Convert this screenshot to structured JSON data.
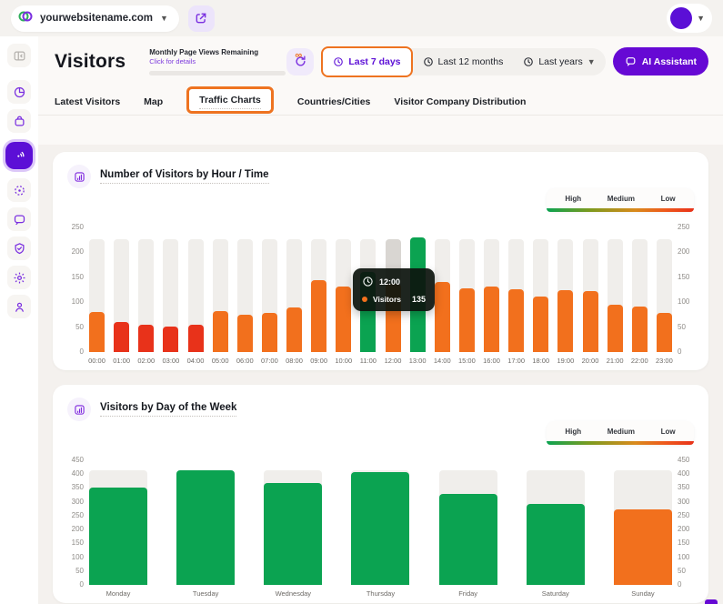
{
  "topbar": {
    "site_selector": {
      "label": "yourwebsitename.com"
    },
    "avatar_color": "#5b0fd6"
  },
  "sidebar": {
    "items": [
      {
        "name": "collapse-sidebar",
        "active": false
      },
      {
        "name": "analytics-pie",
        "active": false
      },
      {
        "name": "orders-bag",
        "active": false
      },
      {
        "name": "traffic-radar",
        "active": true
      },
      {
        "name": "target-scan",
        "active": false
      },
      {
        "name": "chat",
        "active": false
      },
      {
        "name": "security-shield",
        "active": false
      },
      {
        "name": "settings-gear",
        "active": false
      },
      {
        "name": "account-user",
        "active": false
      }
    ]
  },
  "header": {
    "title": "Visitors",
    "page_views": {
      "label": "Monthly Page Views Remaining",
      "link": "Click for details",
      "infinity": "∞"
    },
    "time_ranges": [
      {
        "label": "Last 7 days",
        "active": true,
        "highlighted": true
      },
      {
        "label": "Last 12 months",
        "active": false
      },
      {
        "label": "Last years",
        "active": false,
        "has_chevron": true
      }
    ],
    "ai_assistant": {
      "label": "AI Assistant"
    }
  },
  "tabs": [
    {
      "label": "Latest Visitors"
    },
    {
      "label": "Map"
    },
    {
      "label": "Traffic Charts",
      "active": true,
      "highlighted": true
    },
    {
      "label": "Countries/Cities"
    },
    {
      "label": "Visitor Company Distribution"
    }
  ],
  "legend": {
    "labels": [
      "High",
      "Medium",
      "Low"
    ]
  },
  "colors": {
    "high": "#0ba351",
    "medium": "#f2701d",
    "low": "#e8321a",
    "track": "#f0eeeb",
    "track_hover": "#d9d6d2",
    "accent_purple": "#6609d4",
    "annotation_orange": "#ee7320"
  },
  "tooltip": {
    "time": "12:00",
    "series": "Visitors",
    "value": "135"
  },
  "chart_data": [
    {
      "type": "bar",
      "title": "Number of Visitors by Hour / Time",
      "categories": [
        "00:00",
        "01:00",
        "02:00",
        "03:00",
        "04:00",
        "05:00",
        "06:00",
        "07:00",
        "08:00",
        "09:00",
        "10:00",
        "11:00",
        "12:00",
        "13:00",
        "14:00",
        "15:00",
        "16:00",
        "17:00",
        "18:00",
        "19:00",
        "20:00",
        "21:00",
        "22:00",
        "23:00"
      ],
      "values": [
        80,
        60,
        55,
        50,
        55,
        82,
        75,
        78,
        88,
        143,
        130,
        160,
        135,
        228,
        140,
        127,
        130,
        125,
        110,
        123,
        121,
        94,
        91,
        78
      ],
      "levels": [
        "medium",
        "low",
        "low",
        "low",
        "low",
        "medium",
        "medium",
        "medium",
        "medium",
        "medium",
        "medium",
        "high",
        "medium",
        "high",
        "medium",
        "medium",
        "medium",
        "medium",
        "medium",
        "medium",
        "medium",
        "medium",
        "medium",
        "medium"
      ],
      "ymax": 250,
      "yticks": [
        250,
        200,
        150,
        100,
        50,
        0
      ],
      "track_value": 225,
      "hover_index": 12,
      "legend_position": "top-right",
      "grid": false
    },
    {
      "type": "bar",
      "title": "Visitors by Day of the Week",
      "categories": [
        "Monday",
        "Tuesday",
        "Wednesday",
        "Thursday",
        "Friday",
        "Saturday",
        "Sunday"
      ],
      "values": [
        350,
        410,
        365,
        405,
        325,
        290,
        270
      ],
      "levels": [
        "high",
        "high",
        "high",
        "high",
        "high",
        "high",
        "medium"
      ],
      "ymax": 450,
      "yticks": [
        450,
        400,
        350,
        300,
        250,
        200,
        150,
        100,
        50,
        0
      ],
      "track_value": 410,
      "hover_index": -1,
      "legend_position": "top-right",
      "grid": false
    }
  ]
}
